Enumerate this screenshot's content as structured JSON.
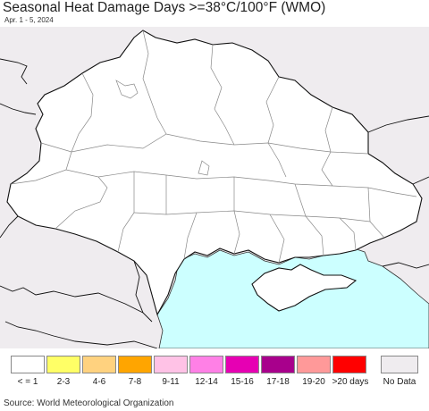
{
  "title": "Seasonal Heat Damage Days >=38°C/100°F (WMO)",
  "date_range": "Apr. 1 - 5, 2024",
  "source": "Source: World Meteorological Organization",
  "colors": {
    "land_data": "#ffffff",
    "land_nodata": "#efecef",
    "water": "#ccffff",
    "border": "#111111",
    "internal_border": "#888888"
  },
  "legend": {
    "items": [
      {
        "label": "< = 1",
        "color": "#ffffff"
      },
      {
        "label": "2-3",
        "color": "#ffff66"
      },
      {
        "label": "4-6",
        "color": "#ffd27f"
      },
      {
        "label": "7-8",
        "color": "#ffa500"
      },
      {
        "label": "9-11",
        "color": "#ffc2e6"
      },
      {
        "label": "12-14",
        "color": "#ff80e6"
      },
      {
        "label": "15-16",
        "color": "#e600b3"
      },
      {
        "label": "17-18",
        "color": "#a8008c"
      },
      {
        "label": "19-20",
        "color": "#ff9999"
      },
      {
        "label": ">20 days",
        "color": "#ff0000"
      }
    ],
    "nodata": {
      "label": "No Data",
      "color": "#efecef"
    }
  }
}
